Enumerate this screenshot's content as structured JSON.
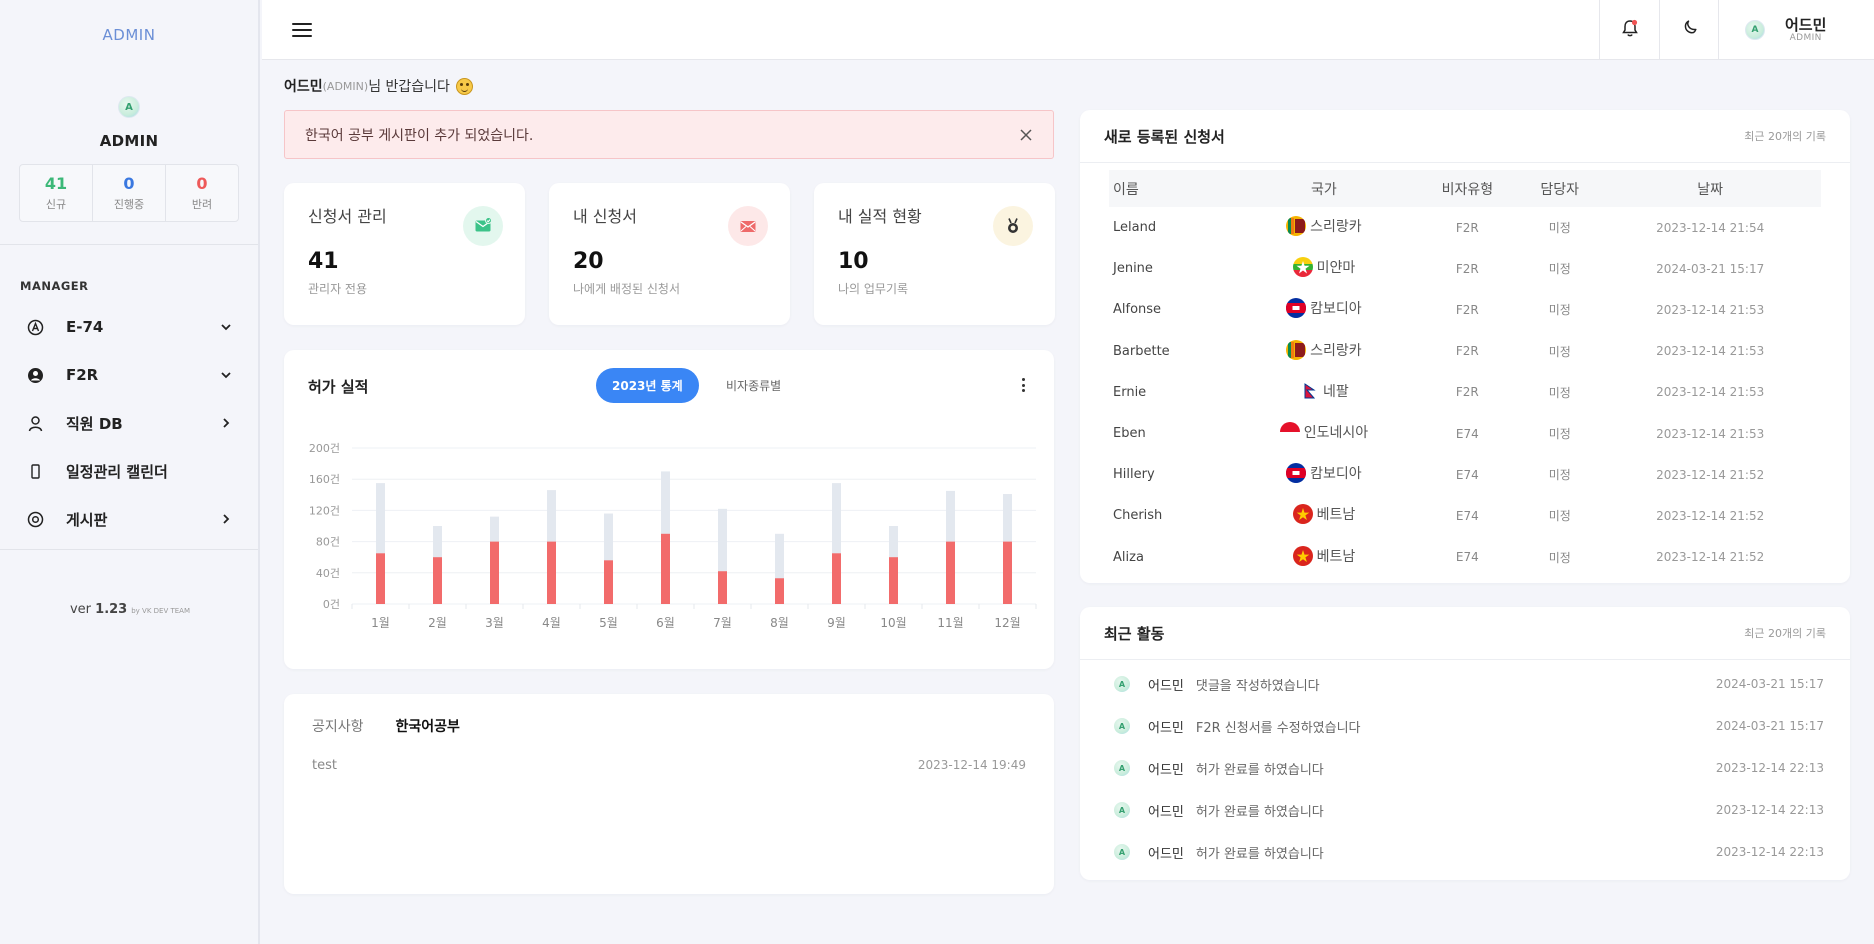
{
  "sidebar": {
    "brand": "ADMIN",
    "avatar_letter": "A",
    "profile_name": "ADMIN",
    "stats": [
      {
        "value": "41",
        "label": "신규"
      },
      {
        "value": "0",
        "label": "진행중"
      },
      {
        "value": "0",
        "label": "반려"
      }
    ],
    "section_title": "MANAGER",
    "menu": [
      {
        "label": "E-74",
        "icon": "circle-a-icon",
        "arrow": "chevron-down-icon"
      },
      {
        "label": "F2R",
        "icon": "user-circle-icon",
        "arrow": "chevron-down-icon"
      },
      {
        "label": "직원 DB",
        "icon": "person-icon",
        "arrow": "chevron-right-icon"
      },
      {
        "label": "일정관리 캘린더",
        "icon": "phone-icon",
        "arrow": ""
      },
      {
        "label": "게시판",
        "icon": "eye-icon",
        "arrow": "chevron-right-icon"
      }
    ],
    "version_prefix": "ver ",
    "version": "1.23",
    "version_by": "by VK DEV TEAM"
  },
  "topbar": {
    "user_name": "어드민",
    "user_role": "ADMIN",
    "avatar_letter": "A"
  },
  "welcome": {
    "name": "어드민",
    "role": "(ADMIN)",
    "greeting": "님 반갑습니다"
  },
  "alert": {
    "text": "한국어 공부 게시판이 추가 되었습니다."
  },
  "cards": [
    {
      "title": "신청서 관리",
      "value": "41",
      "sub": "관리자 전용",
      "icon": "mail-check-icon",
      "color": "#3cc389",
      "bg": "#e3f7ee"
    },
    {
      "title": "내 신청서",
      "value": "20",
      "sub": "나에게 배정된 신청서",
      "icon": "mail-open-icon",
      "color": "#ee6a6a",
      "bg": "#fde8e8"
    },
    {
      "title": "내 실적 현황",
      "value": "10",
      "sub": "나의 업무기록",
      "icon": "medal-icon",
      "color": "#333333",
      "bg": "#fbf4e0"
    }
  ],
  "chart": {
    "title": "허가 실적",
    "tab_active": "2023년 통계",
    "tab_inactive": "비자종류별",
    "colors": {
      "total": "#e3e8ef",
      "approved": "#f26b6b"
    }
  },
  "chart_data": {
    "type": "bar",
    "categories": [
      "1월",
      "2월",
      "3월",
      "4월",
      "5월",
      "6월",
      "7월",
      "8월",
      "9월",
      "10월",
      "11월",
      "12월"
    ],
    "series": [
      {
        "values": [
          155,
          100,
          112,
          146,
          116,
          170,
          122,
          90,
          155,
          100,
          145,
          141
        ]
      },
      {
        "values": [
          65,
          60,
          80,
          80,
          56,
          90,
          42,
          33,
          65,
          60,
          80,
          80
        ]
      }
    ],
    "yticks": [
      "0건",
      "40건",
      "80건",
      "120건",
      "160건",
      "200건"
    ],
    "ylim": [
      0,
      200
    ],
    "grid": true
  },
  "notice": {
    "tabs": [
      "공지사항",
      "한국어공부"
    ],
    "rows": [
      {
        "title": "test",
        "date": "2023-12-14 19:49"
      }
    ]
  },
  "applications": {
    "title": "새로 등록된 신청서",
    "subtitle": "최근 20개의 기록",
    "headers": [
      "이름",
      "국가",
      "비자유형",
      "담당자",
      "날짜"
    ],
    "rows": [
      {
        "name": "Leland",
        "country": "스리랑카",
        "flag": "sri-lanka",
        "visa": "F2R",
        "manager": "미정",
        "date": "2023-12-14 21:54"
      },
      {
        "name": "Jenine",
        "country": "미얀마",
        "flag": "myanmar",
        "visa": "F2R",
        "manager": "미정",
        "date": "2024-03-21 15:17"
      },
      {
        "name": "Alfonse",
        "country": "캄보디아",
        "flag": "cambodia",
        "visa": "F2R",
        "manager": "미정",
        "date": "2023-12-14 21:53"
      },
      {
        "name": "Barbette",
        "country": "스리랑카",
        "flag": "sri-lanka",
        "visa": "F2R",
        "manager": "미정",
        "date": "2023-12-14 21:53"
      },
      {
        "name": "Ernie",
        "country": "네팔",
        "flag": "nepal",
        "visa": "F2R",
        "manager": "미정",
        "date": "2023-12-14 21:53"
      },
      {
        "name": "Eben",
        "country": "인도네시아",
        "flag": "indonesia",
        "visa": "E74",
        "manager": "미정",
        "date": "2023-12-14 21:53"
      },
      {
        "name": "Hillery",
        "country": "캄보디아",
        "flag": "cambodia",
        "visa": "E74",
        "manager": "미정",
        "date": "2023-12-14 21:52"
      },
      {
        "name": "Cherish",
        "country": "베트남",
        "flag": "vietnam",
        "visa": "E74",
        "manager": "미정",
        "date": "2023-12-14 21:52"
      },
      {
        "name": "Aliza",
        "country": "베트남",
        "flag": "vietnam",
        "visa": "E74",
        "manager": "미정",
        "date": "2023-12-14 21:52"
      }
    ]
  },
  "activity": {
    "title": "최근 활동",
    "subtitle": "최근 20개의 기록",
    "rows": [
      {
        "user": "어드민",
        "desc": "댓글을 작성하였습니다",
        "date": "2024-03-21 15:17"
      },
      {
        "user": "어드민",
        "desc": "F2R 신청서를 수정하였습니다",
        "date": "2024-03-21 15:17"
      },
      {
        "user": "어드민",
        "desc": "허가 완료를 하였습니다",
        "date": "2023-12-14 22:13"
      },
      {
        "user": "어드민",
        "desc": "허가 완료를 하였습니다",
        "date": "2023-12-14 22:13"
      },
      {
        "user": "어드민",
        "desc": "허가 완료를 하였습니다",
        "date": "2023-12-14 22:13"
      }
    ]
  }
}
